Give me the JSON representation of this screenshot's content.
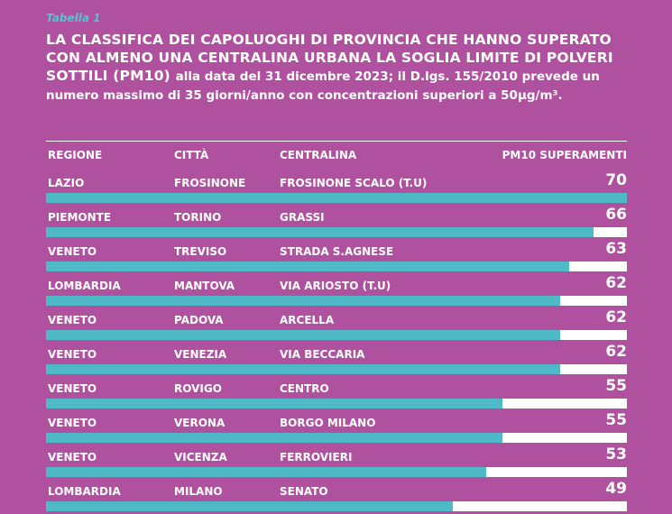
{
  "caption": "Tabella 1",
  "title_lead": "LA CLASSIFICA DEI CAPOLUOGHI DI PROVINCIA CHE HANNO SUPERATO CON ALMENO UNA CENTRALINA URBANA LA SOGLIA LIMITE DI POLVERI SOTTILI (PM10)",
  "title_tail": "alla data del 31 dicembre 2023; il D.lgs. 155/2010 prevede un numero massimo di 35 giorni/anno con concentrazioni superiori a 50µg/m³.",
  "header": {
    "regione": "REGIONE",
    "citta": "CITTÀ",
    "centralina": "CENTRALINA",
    "pm10": "PM10 SUPERAMENTI"
  },
  "colors": {
    "background": "#b0519f",
    "bar": "#4fb9c8",
    "track": "#ffffff",
    "caption": "#58c3cf"
  },
  "chart_data": {
    "type": "bar",
    "orientation": "horizontal",
    "xlim": [
      0,
      70
    ],
    "columns": [
      "REGIONE",
      "CITTÀ",
      "CENTRALINA",
      "PM10 SUPERAMENTI"
    ],
    "rows": [
      {
        "regione": "LAZIO",
        "citta": "FROSINONE",
        "centralina": "FROSINONE SCALO (T.U)",
        "value": 70
      },
      {
        "regione": "PIEMONTE",
        "citta": "TORINO",
        "centralina": "GRASSI",
        "value": 66
      },
      {
        "regione": "VENETO",
        "citta": "TREVISO",
        "centralina": "STRADA S.AGNESE",
        "value": 63
      },
      {
        "regione": "LOMBARDIA",
        "citta": "MANTOVA",
        "centralina": "VIA ARIOSTO (T.U)",
        "value": 62
      },
      {
        "regione": "VENETO",
        "citta": "PADOVA",
        "centralina": "ARCELLA",
        "value": 62
      },
      {
        "regione": "VENETO",
        "citta": "VENEZIA",
        "centralina": "VIA BECCARIA",
        "value": 62
      },
      {
        "regione": "VENETO",
        "citta": "ROVIGO",
        "centralina": "CENTRO",
        "value": 55
      },
      {
        "regione": "VENETO",
        "citta": "VERONA",
        "centralina": "BORGO MILANO",
        "value": 55
      },
      {
        "regione": "VENETO",
        "citta": "VICENZA",
        "centralina": "FERROVIERI",
        "value": 53
      },
      {
        "regione": "LOMBARDIA",
        "citta": "MILANO",
        "centralina": "SENATO",
        "value": 49
      }
    ]
  }
}
